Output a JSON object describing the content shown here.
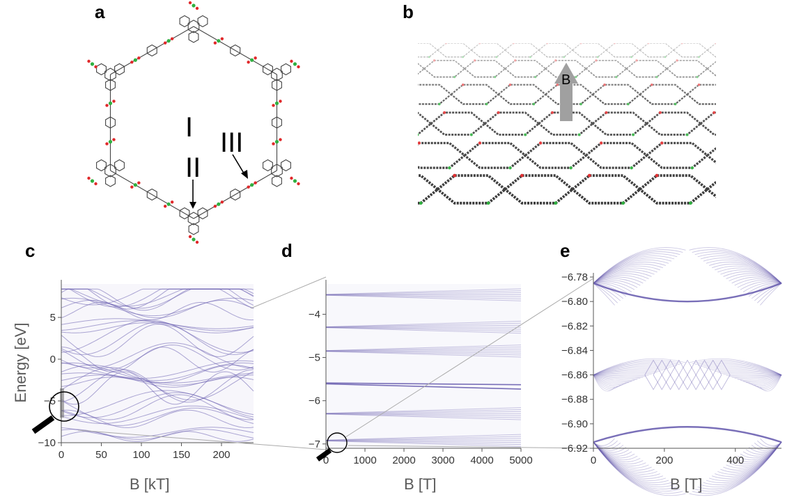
{
  "panels": {
    "a": {
      "letter": "a",
      "regions": [
        "I",
        "II",
        "III"
      ]
    },
    "b": {
      "letter": "b",
      "arrow_label": "B"
    },
    "c": {
      "letter": "c"
    },
    "d": {
      "letter": "d"
    },
    "e": {
      "letter": "e"
    }
  },
  "colors": {
    "band": "#6a5fb0",
    "carbon": "#444444",
    "oxygen": "#e0282a",
    "boron": "#30b040",
    "arrow_gray": "#a0a0a0",
    "axis": "#555555"
  },
  "chart_data": [
    {
      "panel": "c",
      "type": "line",
      "xlabel": "B [kT]",
      "ylabel": "Energy [eV]",
      "xlim": [
        0,
        240
      ],
      "ylim": [
        -10,
        9
      ],
      "xticks": [
        0,
        50,
        100,
        150,
        200
      ],
      "yticks": [
        -10,
        -5,
        0,
        5
      ],
      "tick_labels_y": [
        "−10",
        "−5",
        "0",
        "5"
      ],
      "tick_labels_x": [
        "0",
        "50",
        "100",
        "150",
        "200"
      ],
      "bands": [
        -9,
        -6.9,
        -5.5,
        -3.2,
        -2.5,
        -1.5,
        0.2,
        2.5,
        4.0,
        6.0,
        7.6,
        8.2
      ]
    },
    {
      "panel": "d",
      "type": "line",
      "xlabel": "B [T]",
      "ylabel": "",
      "xlim": [
        0,
        5000
      ],
      "ylim": [
        -7.1,
        -3.3
      ],
      "xticks": [
        0,
        1000,
        2000,
        3000,
        4000,
        5000
      ],
      "yticks": [
        -7,
        -6,
        -5,
        -4
      ],
      "tick_labels_y": [
        "−7",
        "−6",
        "−5",
        "−4"
      ],
      "tick_labels_x": [
        "0",
        "1000",
        "2000",
        "3000",
        "4000",
        "5000"
      ],
      "bands": [
        -6.92,
        -6.3,
        -5.6,
        -4.85,
        -4.3,
        -3.55
      ]
    },
    {
      "panel": "e",
      "type": "line",
      "xlabel": "B [T]",
      "ylabel": "",
      "xlim": [
        0,
        530
      ],
      "ylim": [
        -6.92,
        -6.78
      ],
      "xticks": [
        0,
        200,
        400
      ],
      "yticks": [
        -6.78,
        -6.8,
        -6.82,
        -6.84,
        -6.86,
        -6.88,
        -6.9,
        -6.92
      ],
      "tick_labels_y": [
        "−6.78",
        "−6.80",
        "−6.82",
        "−6.84",
        "−6.86",
        "−6.88",
        "−6.90",
        "−6.92"
      ],
      "tick_labels_x": [
        "0",
        "200",
        "400"
      ]
    }
  ]
}
